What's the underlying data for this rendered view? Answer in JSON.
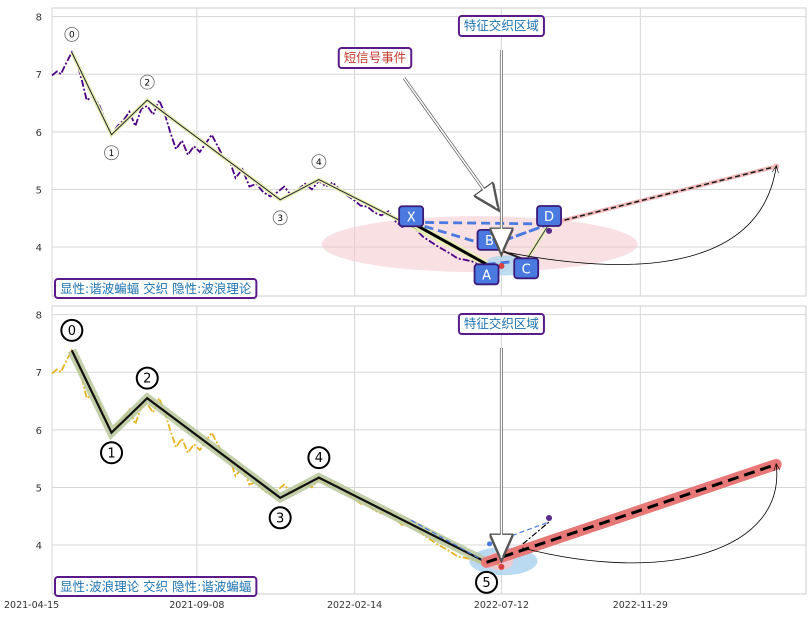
{
  "chart_data": [
    {
      "type": "line",
      "panel": "top",
      "xlim": [
        "2021-04-15",
        "2023-05-15"
      ],
      "ylim": [
        3.15,
        8.15
      ],
      "yticks": [
        "8",
        "7",
        "6",
        "5",
        "4"
      ],
      "grid": true,
      "series": [
        {
          "color": "#4b0082",
          "style": "dash-dot",
          "x": [
            "2021-04-15",
            "2021-04-20",
            "2021-04-24",
            "2021-04-28",
            "2021-05-05",
            "2021-05-10",
            "2021-05-15",
            "2021-05-20",
            "2021-05-27",
            "2021-06-02",
            "2021-06-08",
            "2021-06-14",
            "2021-06-20",
            "2021-06-26",
            "2021-07-02",
            "2021-07-08",
            "2021-07-14",
            "2021-07-20",
            "2021-07-26",
            "2021-08-01",
            "2021-08-06",
            "2021-08-12",
            "2021-08-18",
            "2021-08-24",
            "2021-08-30",
            "2021-09-05",
            "2021-09-11",
            "2021-09-17",
            "2021-09-23",
            "2021-09-29",
            "2021-10-05",
            "2021-10-11",
            "2021-10-17",
            "2021-10-24",
            "2021-10-31",
            "2021-11-07",
            "2021-11-14",
            "2021-11-21",
            "2021-11-28",
            "2021-12-05",
            "2021-12-12",
            "2021-12-19",
            "2021-12-26",
            "2022-01-02",
            "2022-01-09",
            "2022-01-16",
            "2022-01-23",
            "2022-01-30",
            "2022-02-06",
            "2022-02-13",
            "2022-02-20",
            "2022-02-27",
            "2022-03-06",
            "2022-03-13",
            "2022-03-20",
            "2022-03-27",
            "2022-04-03",
            "2022-04-10",
            "2022-04-17",
            "2022-04-24",
            "2022-05-01",
            "2022-05-08",
            "2022-05-15",
            "2022-05-22",
            "2022-05-29",
            "2022-06-05",
            "2022-06-12",
            "2022-06-19",
            "2022-06-26",
            "2022-07-03",
            "2022-07-10"
          ],
          "y": [
            6.98,
            7.05,
            7.0,
            7.15,
            7.38,
            7.2,
            6.9,
            6.55,
            6.62,
            6.45,
            6.2,
            5.95,
            6.1,
            6.2,
            6.35,
            6.1,
            6.4,
            6.45,
            6.3,
            6.55,
            6.35,
            6.0,
            5.7,
            5.85,
            5.6,
            5.75,
            5.65,
            5.8,
            5.95,
            5.75,
            5.55,
            5.5,
            5.2,
            5.35,
            5.05,
            5.1,
            4.95,
            4.88,
            4.95,
            5.05,
            4.9,
            5.0,
            5.1,
            5.0,
            5.15,
            5.05,
            5.12,
            5.0,
            4.9,
            4.82,
            4.72,
            4.7,
            4.6,
            4.55,
            4.62,
            4.45,
            4.35,
            4.4,
            4.3,
            4.18,
            4.1,
            4.02,
            3.95,
            3.88,
            3.8,
            3.78,
            3.75,
            3.72,
            3.7,
            3.68,
            3.66
          ]
        },
        {
          "color": "#000000",
          "style": "solid",
          "x": [
            "2021-05-05",
            "2021-06-14",
            "2021-07-20",
            "2021-12-01",
            "2022-01-09",
            "2022-06-27"
          ],
          "y": [
            7.38,
            5.95,
            6.55,
            4.82,
            5.17,
            3.7
          ]
        },
        {
          "color": "#1a1a1a",
          "style": "dashed",
          "x": [
            "2022-08-29",
            "2023-04-15"
          ],
          "y": [
            4.4,
            5.4
          ]
        }
      ],
      "wave_labels": [
        "0",
        "1",
        "2",
        "3",
        "4"
      ],
      "xabcd_labels": [
        "X",
        "A",
        "B",
        "C",
        "D"
      ],
      "annotations": {
        "feature_zone": "特征交织区域",
        "short_signal": "短信号事件",
        "legend": "显性:谐波蝙蝠 交织 隐性:波浪理论"
      }
    },
    {
      "type": "line",
      "panel": "bottom",
      "xlim": [
        "2021-04-15",
        "2023-05-15"
      ],
      "ylim": [
        3.15,
        8.15
      ],
      "yticks": [
        "8",
        "7",
        "6",
        "5",
        "4"
      ],
      "xticks": [
        "2021-04-15",
        "2021-09-08",
        "2022-02-14",
        "2022-07-12",
        "2022-11-29"
      ],
      "grid": true,
      "series": [
        {
          "color": "#e6b422",
          "style": "dash-dot",
          "x": [
            "2021-04-15",
            "2021-04-20",
            "2021-04-24",
            "2021-04-28",
            "2021-05-05",
            "2021-05-10",
            "2021-05-15",
            "2021-05-20",
            "2021-05-27",
            "2021-06-02",
            "2021-06-08",
            "2021-06-14",
            "2021-06-20",
            "2021-06-26",
            "2021-07-02",
            "2021-07-08",
            "2021-07-14",
            "2021-07-20",
            "2021-07-26",
            "2021-08-01",
            "2021-08-06",
            "2021-08-12",
            "2021-08-18",
            "2021-08-24",
            "2021-08-30",
            "2021-09-05",
            "2021-09-11",
            "2021-09-17",
            "2021-09-23",
            "2021-09-29",
            "2021-10-05",
            "2021-10-11",
            "2021-10-17",
            "2021-10-24",
            "2021-10-31",
            "2021-11-07",
            "2021-11-14",
            "2021-11-21",
            "2021-11-28",
            "2021-12-05",
            "2021-12-12",
            "2021-12-19",
            "2021-12-26",
            "2022-01-02",
            "2022-01-09",
            "2022-01-16",
            "2022-01-23",
            "2022-01-30",
            "2022-02-06",
            "2022-02-13",
            "2022-02-20",
            "2022-02-27",
            "2022-03-06",
            "2022-03-13",
            "2022-03-20",
            "2022-03-27",
            "2022-04-03",
            "2022-04-10",
            "2022-04-17",
            "2022-04-24",
            "2022-05-01",
            "2022-05-08",
            "2022-05-15",
            "2022-05-22",
            "2022-05-29",
            "2022-06-05",
            "2022-06-12",
            "2022-06-19",
            "2022-06-26",
            "2022-07-03",
            "2022-07-10"
          ],
          "y": [
            6.98,
            7.05,
            7.0,
            7.15,
            7.38,
            7.2,
            6.9,
            6.55,
            6.62,
            6.45,
            6.2,
            5.95,
            6.1,
            6.2,
            6.35,
            6.1,
            6.4,
            6.45,
            6.3,
            6.55,
            6.35,
            6.0,
            5.7,
            5.85,
            5.6,
            5.75,
            5.65,
            5.8,
            5.95,
            5.75,
            5.55,
            5.5,
            5.2,
            5.35,
            5.05,
            5.1,
            4.95,
            4.88,
            4.95,
            5.05,
            4.9,
            5.0,
            5.1,
            5.0,
            5.15,
            5.05,
            5.12,
            5.0,
            4.9,
            4.82,
            4.72,
            4.7,
            4.6,
            4.55,
            4.62,
            4.45,
            4.35,
            4.4,
            4.3,
            4.18,
            4.1,
            4.02,
            3.95,
            3.88,
            3.8,
            3.78,
            3.75,
            3.72,
            3.7,
            3.68,
            3.66
          ]
        },
        {
          "color": "#000000",
          "style": "solid",
          "x": [
            "2021-05-05",
            "2021-06-14",
            "2021-07-20",
            "2021-12-01",
            "2022-01-09",
            "2022-06-27"
          ],
          "y": [
            7.38,
            5.95,
            6.55,
            4.82,
            5.17,
            3.7
          ]
        },
        {
          "color": "#000000",
          "style": "dashed",
          "x": [
            "2022-06-27",
            "2023-04-15"
          ],
          "y": [
            3.7,
            5.4
          ]
        }
      ],
      "wave_labels": [
        "0",
        "1",
        "2",
        "3",
        "4",
        "5"
      ],
      "annotations": {
        "feature_zone": "特征交织区域",
        "legend": "显性:波浪理论 交织 隐性:谐波蝙蝠"
      }
    }
  ]
}
